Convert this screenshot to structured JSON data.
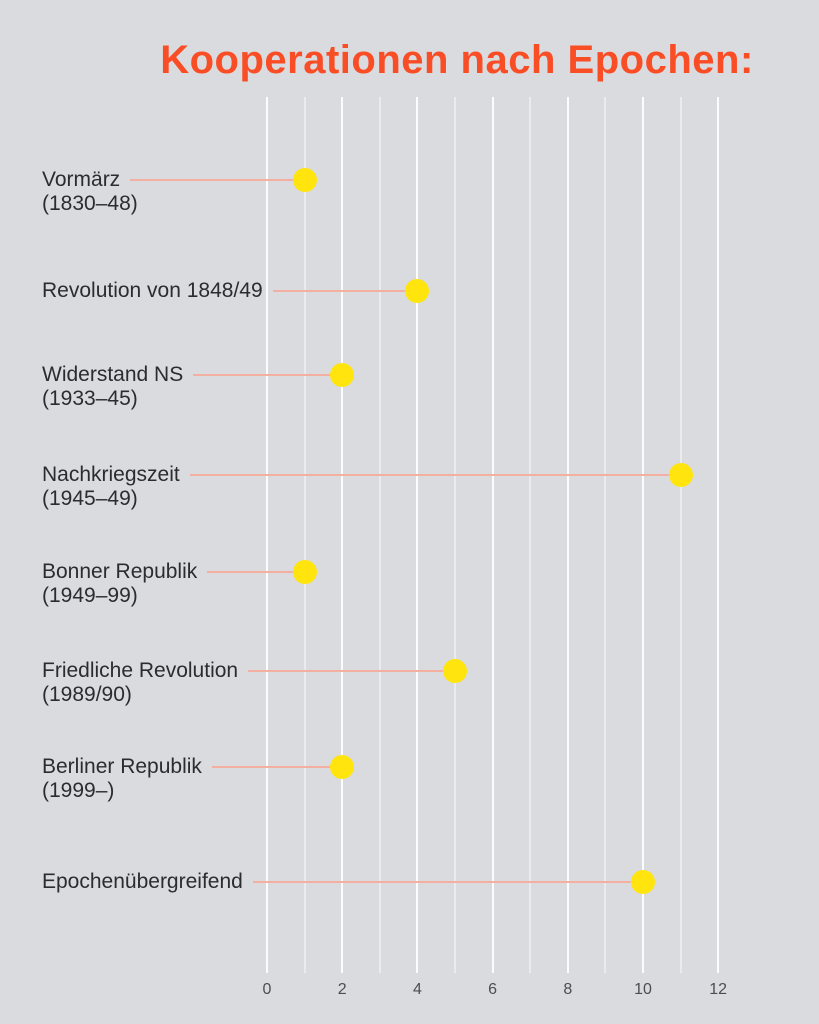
{
  "title": "Kooperationen nach Epochen:",
  "colors": {
    "background": "#dadbde",
    "title": "#f94d26",
    "label_text": "#2c2c30",
    "axis_text": "#4c4d52",
    "gridline": "#ffffff",
    "connector": "#f3afa0",
    "dot": "#ffe50d"
  },
  "chart_data": {
    "type": "scatter",
    "variant": "horizontal-lollipop-dot-plot",
    "title": "Kooperationen nach Epochen:",
    "categories": [
      "Vormärz",
      "Revolution von 1848/49",
      "Widerstand NS",
      "Nachkriegszeit",
      "Bonner Republik",
      "Friedliche Revolution",
      "Berliner Republik",
      "Epochenübergreifend"
    ],
    "sublabels": [
      "(1830–48)",
      "",
      "(1933–45)",
      "(1945–49)",
      "(1949–99)",
      "(1989/90)",
      "(1999–)",
      ""
    ],
    "values": [
      1,
      4,
      2,
      11,
      1,
      5,
      2,
      10
    ],
    "xlabel": "",
    "ylabel": "",
    "xlim": [
      0,
      12
    ],
    "x_tick_labels": [
      "0",
      "2",
      "4",
      "6",
      "8",
      "10",
      "12"
    ],
    "x_tick_values": [
      0,
      2,
      4,
      6,
      8,
      10,
      12
    ],
    "grid": "vertical gridlines at every integer, major lines at labeled even values",
    "legend": "none"
  }
}
